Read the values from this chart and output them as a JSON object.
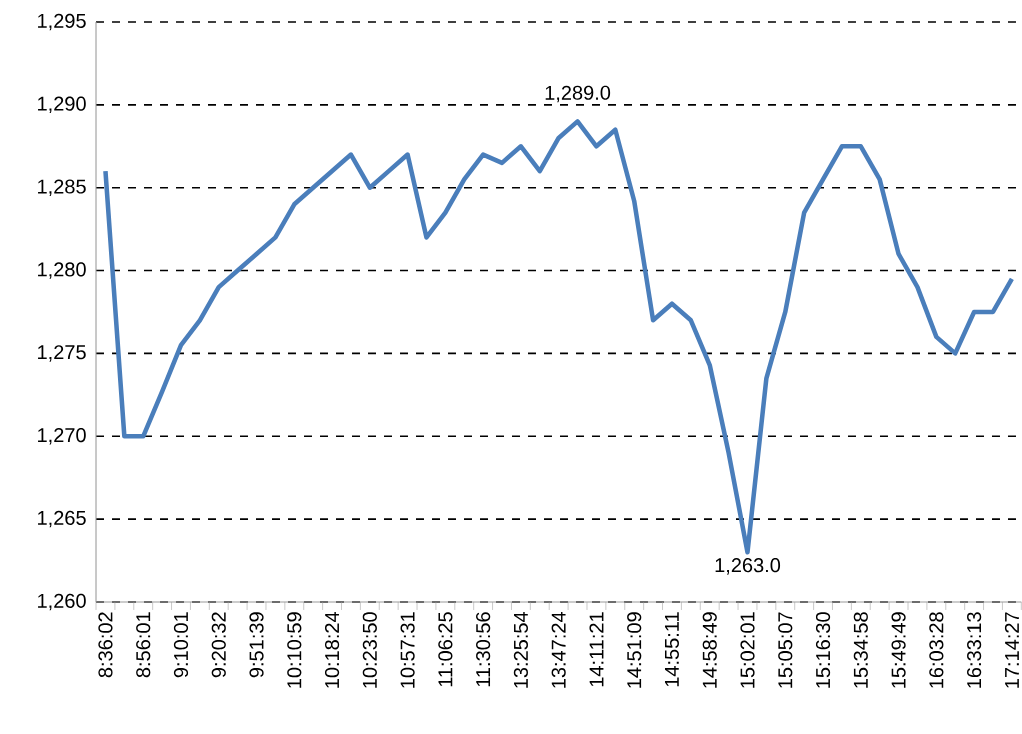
{
  "chart_data": {
    "type": "line",
    "categories": [
      "8:36:02",
      null,
      "8:56:01",
      null,
      "9:10:01",
      null,
      "9:20:32",
      null,
      "9:51:39",
      null,
      "10:10:59",
      null,
      "10:18:24",
      null,
      "10:23:50",
      null,
      "10:57:31",
      null,
      "11:06:25",
      null,
      "11:30:56",
      null,
      "13:25:54",
      null,
      "13:47:24",
      null,
      "14:11:21",
      null,
      "14:51:09",
      null,
      "14:55:11",
      null,
      "14:58:49",
      null,
      "15:02:01",
      null,
      "15:05:07",
      null,
      "15:16:30",
      null,
      "15:34:58",
      null,
      "15:49:49",
      null,
      "16:03:28",
      null,
      "16:33:13",
      null,
      "17:14:27"
    ],
    "series": [
      {
        "color": "#4a7ebb",
        "values": [
          1286,
          1270,
          1270,
          1272.7,
          1275.5,
          1277,
          1279,
          1280,
          1281,
          1282,
          1284,
          1285,
          1286,
          1287,
          1285,
          1286,
          1287,
          1282,
          1283.5,
          1285.5,
          1287,
          1286.5,
          1287.5,
          1286,
          1288,
          1289,
          1287.5,
          1288.5,
          1284.2,
          1277,
          1278,
          1277,
          1274.3,
          1269,
          1263,
          1273.5,
          1277.5,
          1283.5,
          1285.5,
          1287.5,
          1287.5,
          1285.5,
          1281,
          1279,
          1276,
          1275,
          1277.5,
          1277.5,
          1279.5
        ],
        "value_labels": [
          null,
          null,
          null,
          null,
          null,
          null,
          null,
          null,
          null,
          null,
          null,
          null,
          null,
          null,
          null,
          null,
          null,
          null,
          null,
          null,
          null,
          null,
          null,
          null,
          null,
          "1,289.0",
          null,
          null,
          null,
          null,
          null,
          null,
          null,
          null,
          "1,263.0",
          null,
          null,
          null,
          null,
          null,
          null,
          null,
          null,
          null,
          null,
          null,
          null,
          null,
          null
        ]
      }
    ],
    "ylim": [
      1260,
      1295
    ],
    "yticks": [
      {
        "value": 1260,
        "label": "1,260"
      },
      {
        "value": 1265,
        "label": "1,265"
      },
      {
        "value": 1270,
        "label": "1,270"
      },
      {
        "value": 1275,
        "label": "1,275"
      },
      {
        "value": 1280,
        "label": "1,280"
      },
      {
        "value": 1285,
        "label": "1,285"
      },
      {
        "value": 1290,
        "label": "1,290"
      },
      {
        "value": 1295,
        "label": "1,295"
      }
    ],
    "grid": "y",
    "marker": "none",
    "line_style": "solid"
  }
}
